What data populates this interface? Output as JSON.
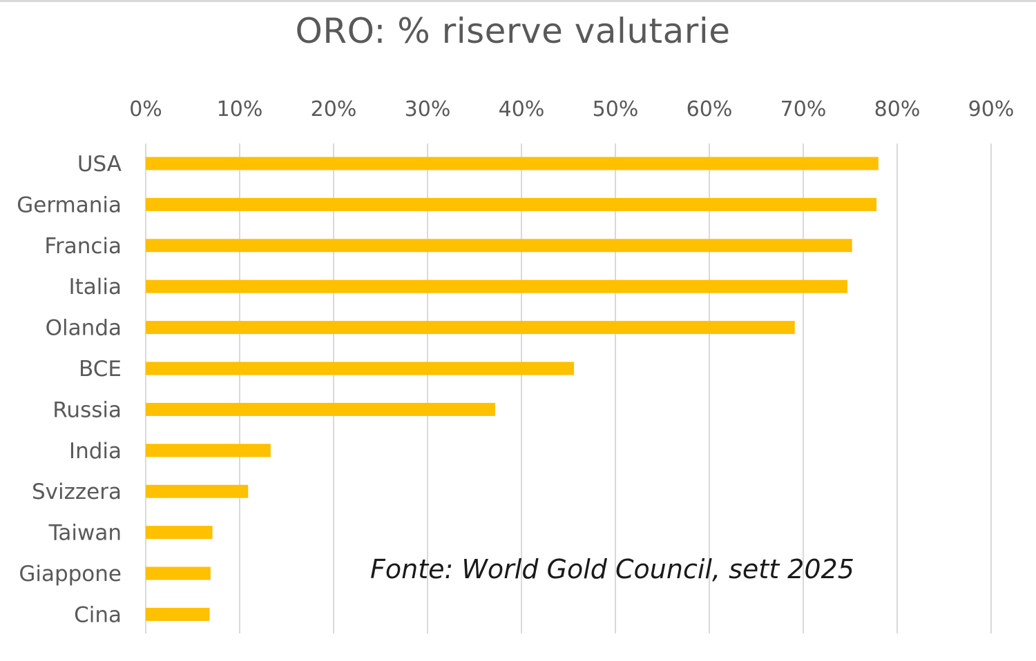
{
  "chart_data": {
    "type": "bar",
    "orientation": "horizontal",
    "title": "ORO: % riserve valutarie",
    "categories": [
      "USA",
      "Germania",
      "Francia",
      "Italia",
      "Olanda",
      "BCE",
      "Russia",
      "India",
      "Svizzera",
      "Taiwan",
      "Giappone",
      "Cina"
    ],
    "values": [
      78.0,
      77.8,
      75.2,
      74.7,
      69.1,
      45.6,
      37.2,
      13.3,
      10.9,
      7.1,
      6.9,
      6.8
    ],
    "xlim": [
      0,
      90
    ],
    "x_ticks": [
      "0%",
      "10%",
      "20%",
      "30%",
      "40%",
      "50%",
      "60%",
      "70%",
      "80%",
      "90%"
    ],
    "x_axis_position": "top",
    "grid": "vertical",
    "legend": "none",
    "bar_color": "#ffc000",
    "annotation": "Fonte: World Gold Council, sett 2025"
  }
}
